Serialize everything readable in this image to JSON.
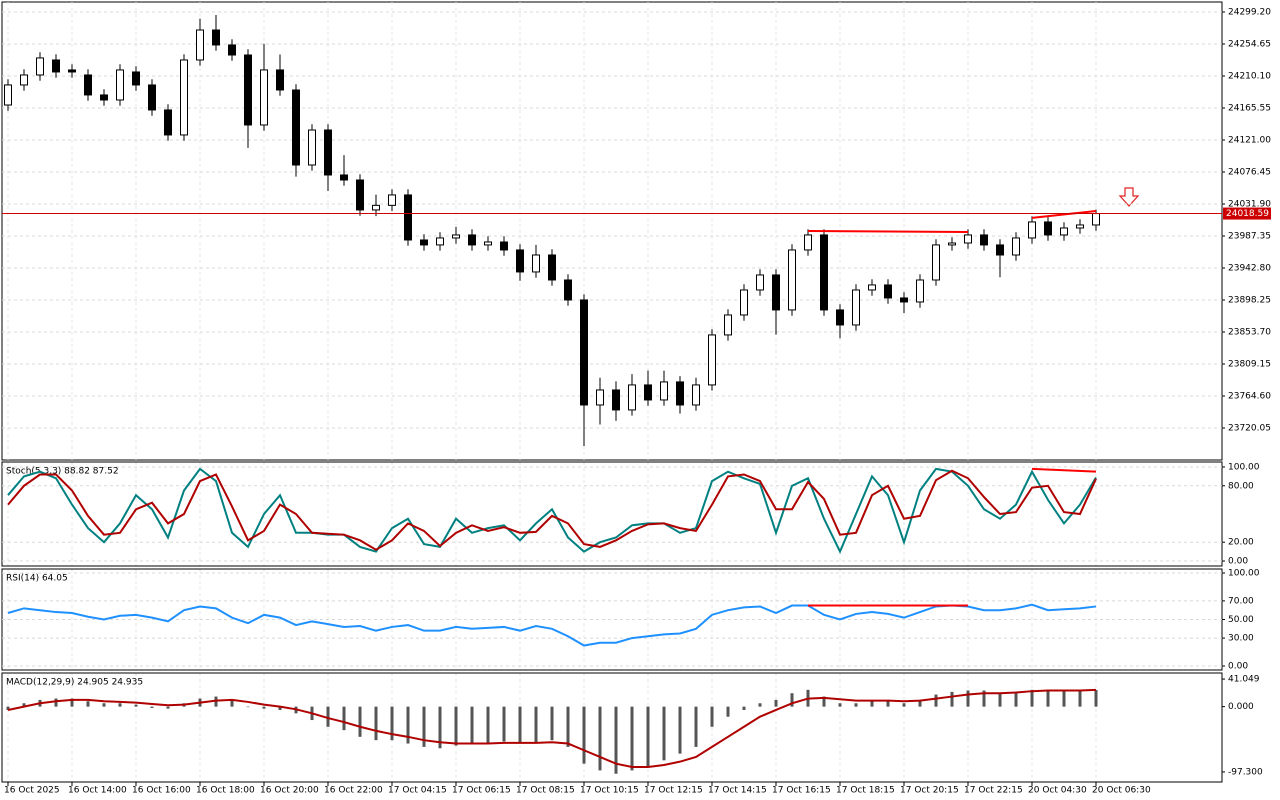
{
  "chart_data": [
    {
      "type": "candlestick",
      "categories": [
        "16 Oct 2025",
        null,
        null,
        null,
        "16 Oct 14:00",
        null,
        null,
        null,
        "16 Oct 16:00",
        null,
        null,
        null,
        "16 Oct 18:00",
        null,
        null,
        null,
        "16 Oct 20:00",
        null,
        null,
        null,
        "16 Oct 22:00",
        null,
        null,
        null,
        "17 Oct 04:15",
        null,
        null,
        null,
        "17 Oct 06:15",
        null,
        null,
        null,
        "17 Oct 08:15",
        null,
        null,
        null,
        "17 Oct 10:15",
        null,
        null,
        null,
        "17 Oct 12:15",
        null,
        null,
        null,
        "17 Oct 14:15",
        null,
        null,
        null,
        "17 Oct 16:15",
        null,
        null,
        null,
        "17 Oct 18:15",
        null,
        null,
        null,
        "17 Oct 20:15",
        null,
        null,
        null,
        "17 Oct 22:15",
        null,
        null,
        null,
        "20 Oct 04:30",
        null,
        null,
        null,
        "20 Oct 06:30"
      ],
      "open": [
        24169.7,
        24197.6,
        24211.5,
        24232.4,
        24218.5,
        24211.5,
        24183.7,
        24176.7,
        24215.7,
        24197.6,
        24162.8,
        24128.0,
        24232.4,
        24274.1,
        24253.3,
        24239.3,
        24141.9,
        24218.5,
        24190.6,
        24086.2,
        24134.9,
        24072.3,
        24065.3,
        24023.6,
        24030.0,
        24044.5,
        23981.8,
        23974.9,
        23984.6,
        23988.8,
        23974.9,
        23979.0,
        23967.9,
        23937.3,
        23960.9,
        23926.1,
        23898.3,
        23752.1,
        23773.0,
        23745.2,
        23780.0,
        23759.1,
        23784.2,
        23752.1,
        23780.0,
        23849.6,
        23877.4,
        23912.2,
        23933.1,
        23884.4,
        23967.9,
        23988.8,
        23884.4,
        23863.5,
        23912.2,
        23919.2,
        23901.1,
        23895.5,
        23926.1,
        23974.9,
        23977.6,
        23988.8,
        23974.9,
        23960.9,
        23984.6,
        24006.9,
        23988.8,
        23998.5,
        24002.7
      ],
      "high": [
        24205.6,
        24219.5,
        24243.2,
        24240.4,
        24226.5,
        24219.5,
        24191.7,
        24226.5,
        24223.7,
        24205.6,
        24170.8,
        24240.4,
        24290.0,
        24295.0,
        24261.3,
        24247.3,
        24255.0,
        24240.0,
        24198.6,
        24142.9,
        24142.9,
        24100.0,
        24073.3,
        24045.0,
        24052.5,
        24052.5,
        23989.8,
        23992.6,
        24000.0,
        23996.8,
        23987.0,
        23987.0,
        23975.9,
        23975.0,
        23968.9,
        23934.1,
        23906.3,
        23790.0,
        23785.0,
        23795.0,
        23800.0,
        23800.0,
        23792.2,
        23790.0,
        23857.6,
        23885.4,
        23920.2,
        23941.1,
        23941.1,
        23975.9,
        23996.8,
        23996.8,
        23892.4,
        23920.2,
        23927.2,
        23927.2,
        23909.1,
        23934.1,
        23982.9,
        23985.6,
        23996.8,
        23996.8,
        23982.9,
        23992.6,
        24014.9,
        24014.9,
        24006.5,
        24010.7,
        24024.0
      ],
      "low": [
        24161.7,
        24189.6,
        24203.5,
        24207.7,
        24207.7,
        24175.7,
        24168.7,
        24168.7,
        24189.6,
        24154.8,
        24120.0,
        24120.0,
        24224.4,
        24245.3,
        24231.3,
        24110.0,
        24133.9,
        24182.6,
        24070.0,
        24078.2,
        24050.0,
        24057.3,
        24015.6,
        24015.0,
        24022.0,
        23973.8,
        23966.9,
        23966.9,
        23976.6,
        23966.9,
        23966.9,
        23959.9,
        23925.0,
        23929.3,
        23918.1,
        23890.3,
        23695.0,
        23725.0,
        23730.0,
        23737.2,
        23751.1,
        23751.1,
        23740.0,
        23744.1,
        23772.0,
        23841.6,
        23869.4,
        23904.2,
        23850.0,
        23876.4,
        23959.9,
        23876.4,
        23845.0,
        23855.5,
        23904.2,
        23893.1,
        23880.0,
        23887.5,
        23918.1,
        23966.9,
        23969.6,
        23966.9,
        23930.0,
        23952.9,
        23976.6,
        23980.8,
        23980.8,
        23990.5,
        23994.7
      ],
      "close": [
        24197.6,
        24211.5,
        24235.2,
        24215.7,
        24215.7,
        24183.7,
        24176.7,
        24218.5,
        24197.6,
        24162.8,
        24128.0,
        24232.4,
        24274.1,
        24253.3,
        24239.3,
        24141.9,
        24218.5,
        24190.6,
        24086.2,
        24134.9,
        24072.3,
        24065.3,
        24023.6,
        24030.0,
        24044.5,
        23981.8,
        23974.9,
        23984.6,
        23988.8,
        23974.9,
        23979.0,
        23967.9,
        23937.3,
        23960.9,
        23926.1,
        23898.3,
        23752.1,
        23773.0,
        23745.2,
        23780.0,
        23759.1,
        23784.2,
        23752.1,
        23780.0,
        23849.6,
        23877.4,
        23912.2,
        23933.1,
        23884.4,
        23967.9,
        23988.8,
        23884.4,
        23863.5,
        23912.2,
        23919.2,
        23901.1,
        23895.5,
        23926.1,
        23974.9,
        23977.6,
        23988.8,
        23974.9,
        23960.9,
        23984.6,
        24006.9,
        23988.8,
        23998.5,
        24002.7,
        24018.59
      ],
      "up_color": "#ffffff",
      "down_color": "#000000",
      "ylim": [
        23675.5,
        24313.1
      ],
      "yticks": [
        {
          "value": 24299.2,
          "label": "24299.20"
        },
        24254.65,
        {
          "value": 24210.1,
          "label": "24210.10"
        },
        24165.55,
        {
          "value": 24121,
          "label": "24121.00"
        },
        24076.45,
        {
          "value": 24031.9,
          "label": "24031.90"
        },
        23987.35,
        {
          "value": 23942.8,
          "label": "23942.80"
        },
        23898.25,
        {
          "value": 23853.7,
          "label": "23853.70"
        },
        23809.15,
        {
          "value": 23764.6,
          "label": "23764.60"
        },
        23720.05
      ],
      "grid": true,
      "current_price": 24018.59,
      "current_price_color": "#cc0000",
      "trend_color": "#ff0000",
      "trend_lines": [
        {
          "x": [
            50,
            60
          ],
          "y": [
            23994.3,
            23992.9
          ]
        },
        {
          "x": [
            64,
            68
          ],
          "y": [
            24012.5,
            24022.2
          ]
        }
      ]
    },
    {
      "type": "line",
      "title": "Stoch(5,3,3) 88.82 87.52",
      "series": [
        {
          "color": "#008080",
          "values": [
            70,
            90,
            95,
            88,
            60,
            35,
            20,
            40,
            70,
            55,
            25,
            75,
            98,
            85,
            30,
            15,
            50,
            70,
            30,
            30,
            28,
            28,
            15,
            10,
            35,
            45,
            18,
            15,
            45,
            30,
            35,
            38,
            22,
            40,
            55,
            25,
            10,
            20,
            25,
            38,
            40,
            40,
            30,
            35,
            85,
            95,
            88,
            82,
            30,
            80,
            88,
            45,
            10,
            50,
            90,
            70,
            20,
            75,
            98,
            95,
            80,
            55,
            45,
            60,
            95,
            65,
            40,
            60,
            88.82
          ]
        },
        {
          "color": "#b00000",
          "values": [
            60,
            80,
            92,
            92,
            75,
            48,
            28,
            30,
            55,
            62,
            40,
            50,
            85,
            92,
            58,
            22,
            32,
            60,
            50,
            30,
            29,
            28,
            22,
            12,
            22,
            40,
            32,
            16,
            30,
            38,
            32,
            36,
            30,
            31,
            48,
            40,
            18,
            15,
            22,
            32,
            39,
            40,
            35,
            32,
            60,
            90,
            92,
            85,
            55,
            55,
            84,
            66,
            28,
            30,
            70,
            80,
            45,
            48,
            86,
            96,
            88,
            68,
            50,
            52,
            78,
            80,
            52,
            50,
            87.52
          ]
        }
      ],
      "ylim": [
        -5.3,
        105.3
      ],
      "yticks": [
        {
          "value": 100,
          "label": "100.00"
        },
        {
          "value": 80,
          "label": "80.00"
        },
        {
          "value": 20,
          "label": "20.00"
        },
        {
          "value": 0,
          "label": "0.00"
        }
      ],
      "grid": true,
      "trend_color": "#ff0000",
      "trend_lines": [
        {
          "x": [
            64,
            68
          ],
          "y": [
            98,
            95
          ]
        }
      ]
    },
    {
      "type": "line",
      "title": "RSI(14) 64.05",
      "series": [
        {
          "color": "#1e90ff",
          "values": [
            57,
            62,
            60,
            58,
            57,
            53,
            50,
            54,
            55,
            52,
            48,
            60,
            64,
            62,
            52,
            46,
            55,
            52,
            44,
            48,
            45,
            42,
            43,
            38,
            42,
            44,
            38,
            38,
            42,
            40,
            41,
            42,
            38,
            43,
            40,
            32,
            22,
            25,
            25,
            30,
            32,
            34,
            35,
            40,
            55,
            60,
            63,
            64,
            57,
            65,
            65,
            55,
            50,
            56,
            58,
            56,
            52,
            58,
            64,
            65,
            64,
            60,
            60,
            62,
            66,
            60,
            61,
            62,
            64.05
          ]
        }
      ],
      "ylim": [
        -4.3,
        104.3
      ],
      "yticks": [
        {
          "value": 100,
          "label": "100.00"
        },
        {
          "value": 70,
          "label": "70.00"
        },
        {
          "value": 50,
          "label": "50.00"
        },
        {
          "value": 30,
          "label": "30.00"
        },
        {
          "value": 0,
          "label": "0.00"
        }
      ],
      "grid": true,
      "trend_color": "#ff0000",
      "trend_lines": [
        {
          "x": [
            50,
            60
          ],
          "y": [
            65,
            65
          ]
        }
      ]
    },
    {
      "type": "macd",
      "title": "MACD(12,29,9) 24.905 24.935",
      "histogram": {
        "color": "#555555",
        "values": [
          -5,
          5,
          10,
          12,
          12,
          8,
          5,
          5,
          3,
          -2,
          -3,
          5,
          12,
          15,
          10,
          0,
          -3,
          -5,
          -10,
          -20,
          -30,
          -35,
          -45,
          -50,
          -50,
          -55,
          -60,
          -62,
          -58,
          -55,
          -55,
          -52,
          -55,
          -55,
          -50,
          -60,
          -85,
          -95,
          -100,
          -95,
          -90,
          -80,
          -70,
          -60,
          -30,
          -15,
          -5,
          5,
          10,
          20,
          25,
          15,
          5,
          5,
          10,
          10,
          5,
          10,
          18,
          22,
          24,
          24,
          20,
          22,
          25,
          25,
          24,
          24,
          24.905
        ]
      },
      "series": [
        {
          "color": "#b00000",
          "values": [
            -5,
            0,
            5,
            8,
            10,
            10,
            8,
            7,
            6,
            4,
            2,
            3,
            6,
            9,
            10,
            7,
            3,
            0,
            -4,
            -10,
            -17,
            -23,
            -30,
            -36,
            -41,
            -45,
            -50,
            -53,
            -55,
            -55,
            -55,
            -54,
            -54,
            -54,
            -53,
            -55,
            -65,
            -75,
            -85,
            -90,
            -90,
            -87,
            -82,
            -75,
            -60,
            -45,
            -30,
            -15,
            -5,
            5,
            12,
            13,
            11,
            9,
            9,
            9,
            8,
            9,
            12,
            15,
            18,
            20,
            20,
            21,
            23,
            24,
            24,
            24,
            24.935
          ]
        }
      ],
      "ylim": [
        -112.3,
        50.1
      ],
      "yticks": [
        41.049,
        {
          "value": 0,
          "label": "0.000"
        },
        {
          "value": -97.3,
          "label": "-97.300"
        }
      ],
      "grid": false
    }
  ]
}
